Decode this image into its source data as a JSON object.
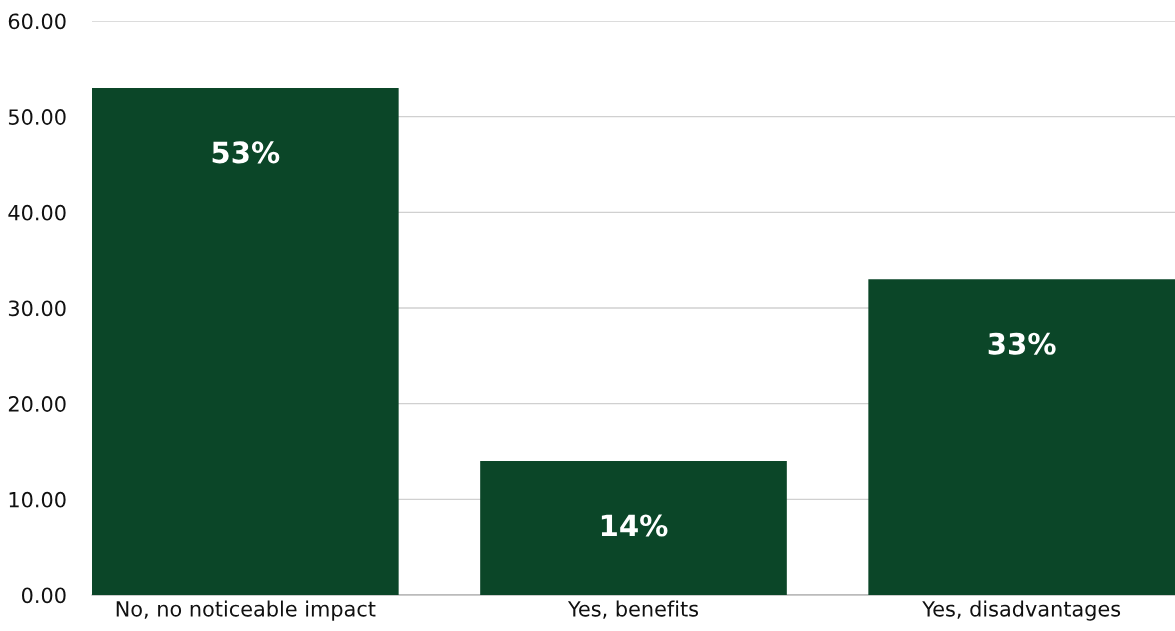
{
  "chart_data": {
    "type": "bar",
    "categories": [
      "No, no noticeable impact",
      "Yes, benefits",
      "Yes, disadvantages"
    ],
    "values": [
      53,
      14,
      33
    ],
    "value_labels": [
      "53%",
      "14%",
      "33%"
    ],
    "color": "#0b4628",
    "ylim": [
      0,
      60
    ],
    "yticks": [
      {
        "value": 0,
        "label": "0.00"
      },
      {
        "value": 10,
        "label": "10.00"
      },
      {
        "value": 20,
        "label": "20.00"
      },
      {
        "value": 30,
        "label": "30.00"
      },
      {
        "value": 40,
        "label": "40.00"
      },
      {
        "value": 50,
        "label": "50.00"
      },
      {
        "value": 60,
        "label": "60.00"
      }
    ],
    "grid": "y"
  }
}
